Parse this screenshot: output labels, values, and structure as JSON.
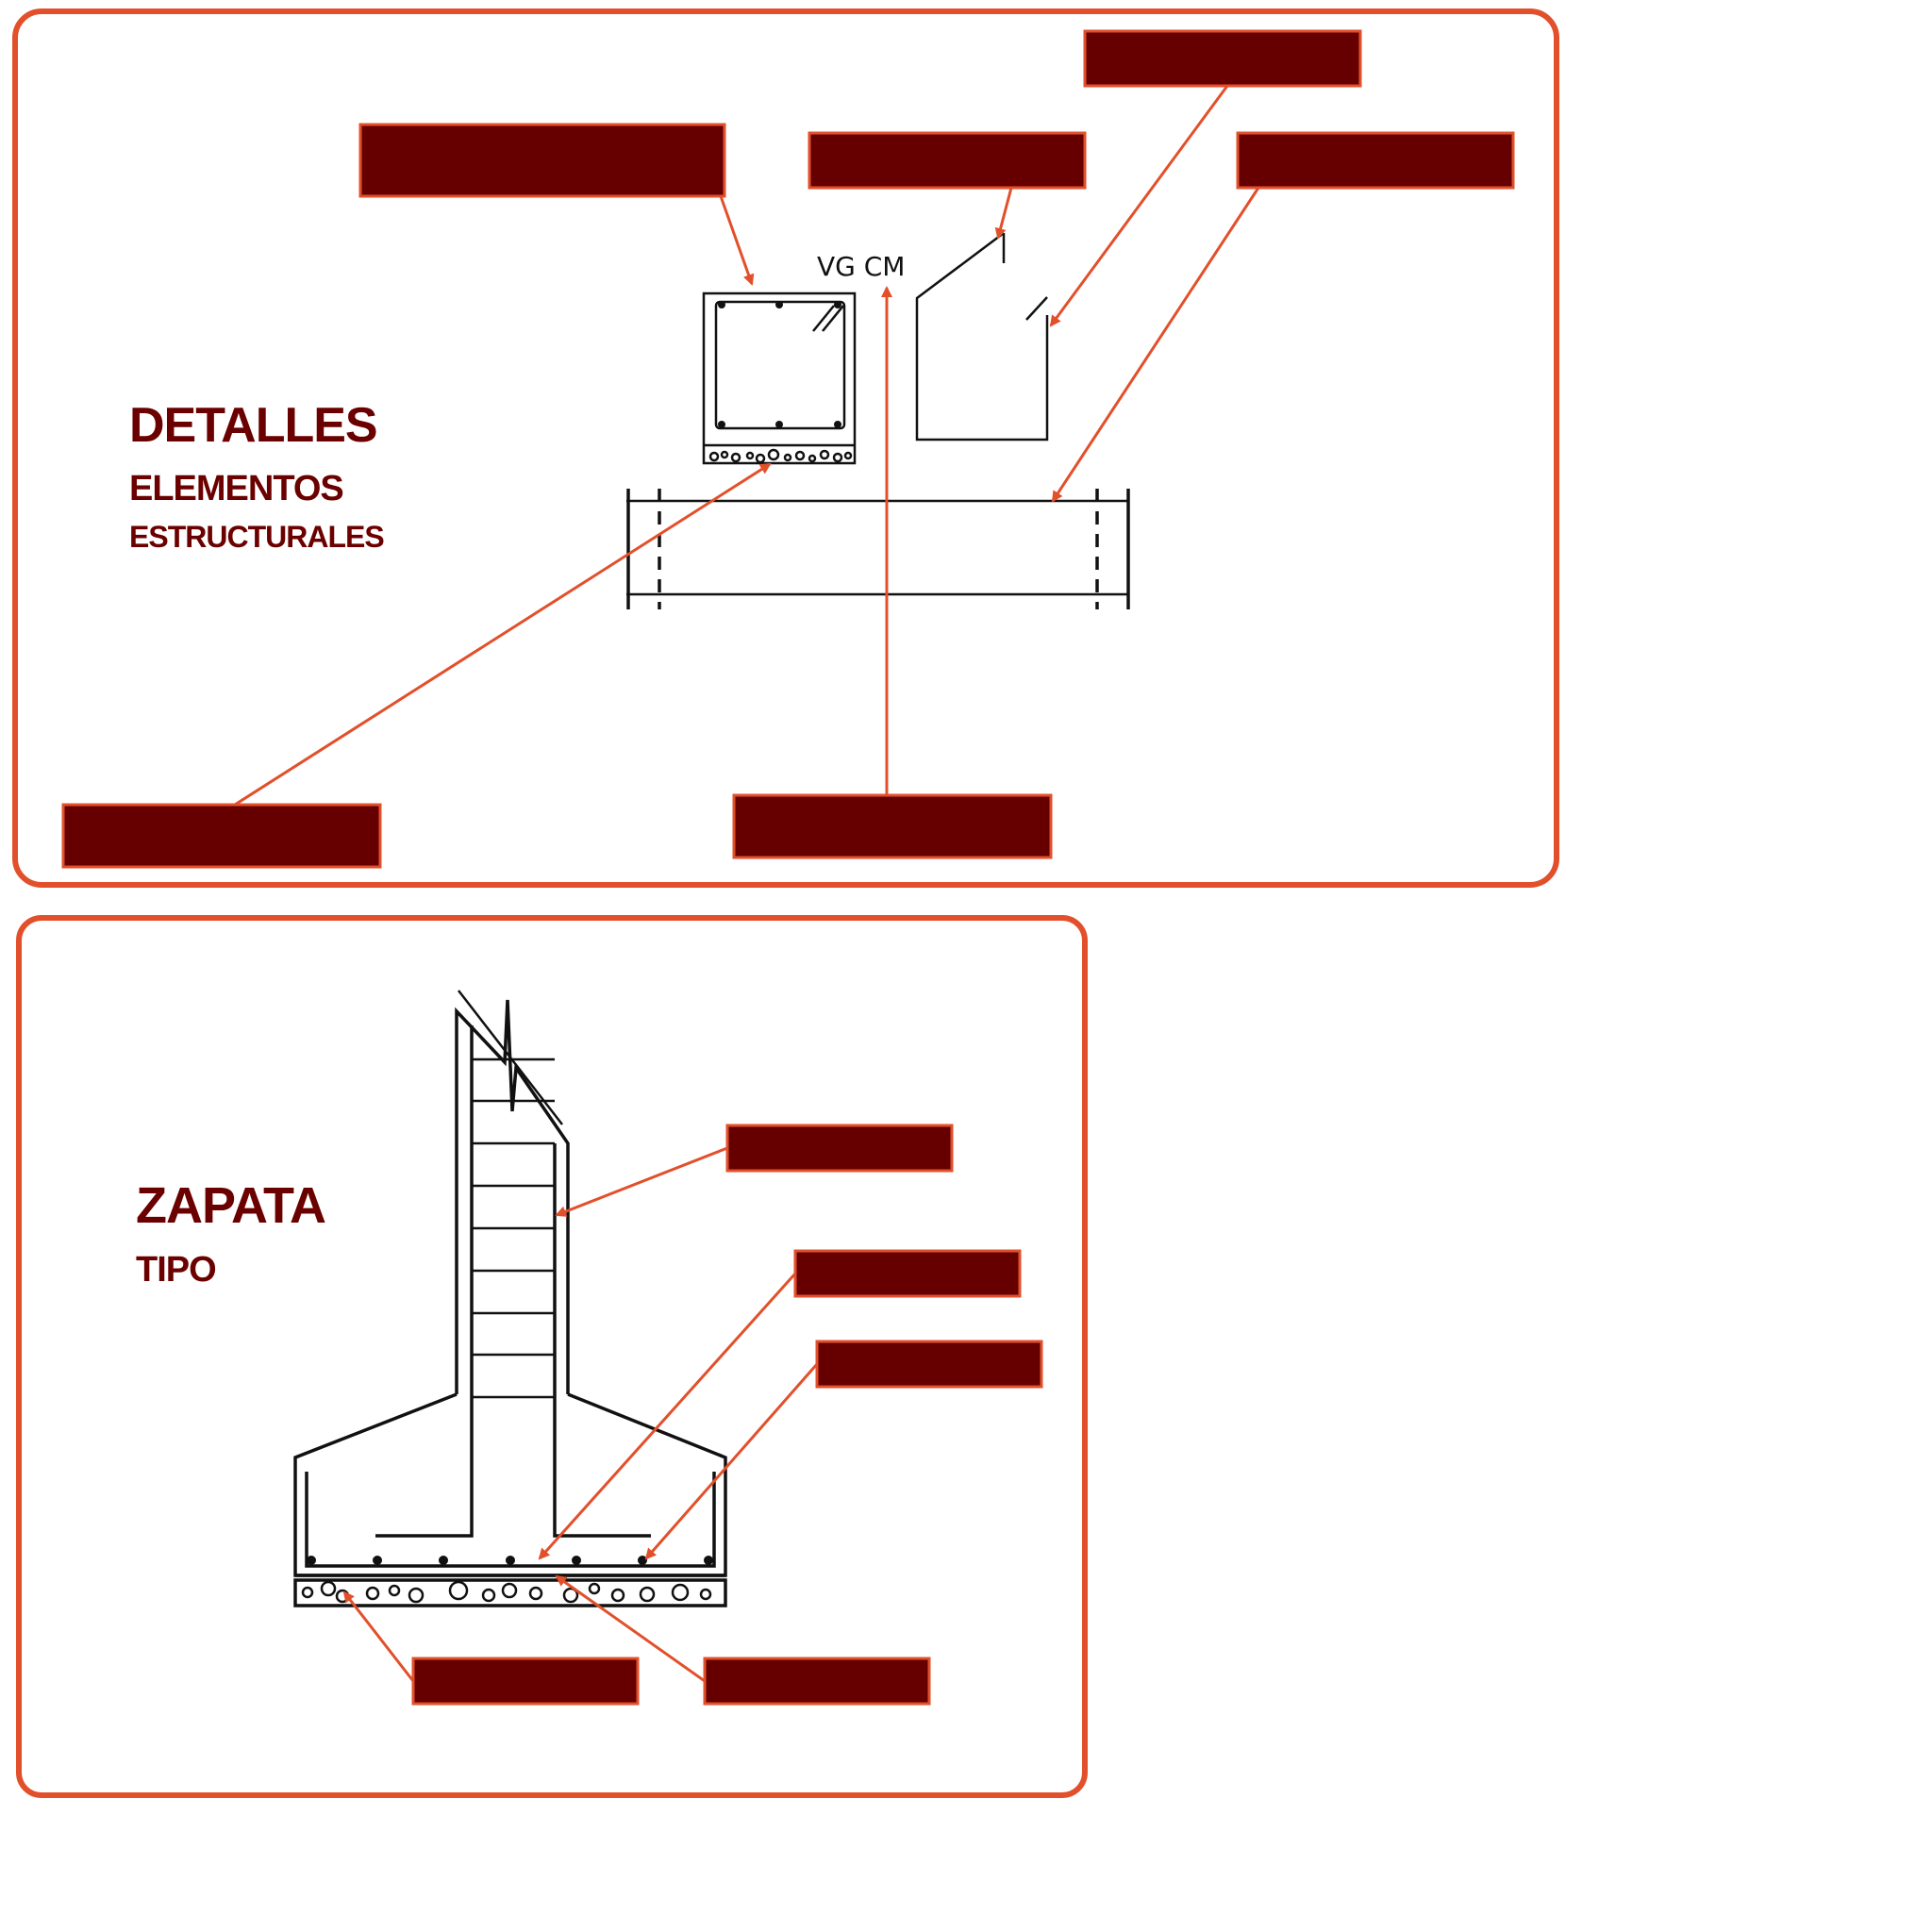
{
  "panels": {
    "details": {
      "title": "DETALLES",
      "subtitle_1": "ELEMENTOS",
      "subtitle_2": "ESTRUCTURALES",
      "drawing_label": "VG CM"
    },
    "footing": {
      "title": "ZAPATA",
      "subtitle": "TIPO"
    }
  },
  "colors": {
    "frame": "#e2502b",
    "label_box": "#660000",
    "title": "#6b0000",
    "ink": "#111111"
  }
}
